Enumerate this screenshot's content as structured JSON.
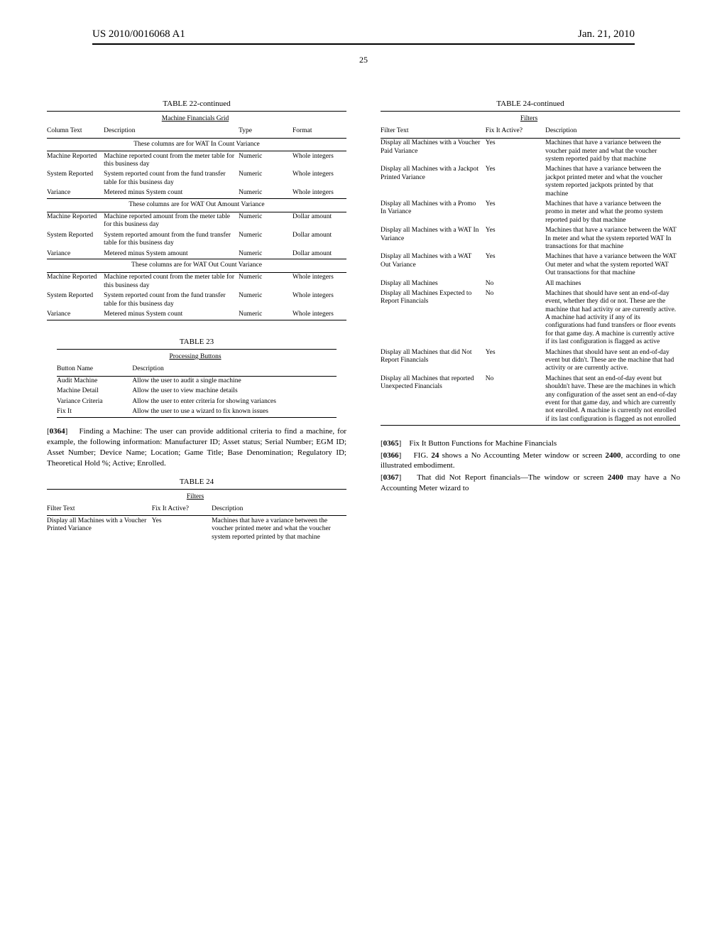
{
  "header": {
    "pubnum": "US 2010/0016068 A1",
    "date": "Jan. 21, 2010",
    "pagenum": "25"
  },
  "table22": {
    "title": "TABLE 22-continued",
    "subtitle": "Machine Financials Grid",
    "headers": [
      "Column Text",
      "Description",
      "Type",
      "Format"
    ],
    "section1": "These columns are for WAT In Count Variance",
    "rows1": [
      [
        "Machine Reported",
        "Machine reported count from the meter table for this business day",
        "Numeric",
        "Whole integers"
      ],
      [
        "System Reported",
        "System reported count from the fund transfer table for this business day",
        "Numeric",
        "Whole integers"
      ],
      [
        "Variance",
        "Metered minus System count",
        "Numeric",
        "Whole integers"
      ]
    ],
    "section2": "These columns are for WAT Out Amount Variance",
    "rows2": [
      [
        "Machine Reported",
        "Machine reported amount from the meter table for this business day",
        "Numeric",
        "Dollar amount"
      ],
      [
        "System Reported",
        "System reported amount from the fund transfer table for this business day",
        "Numeric",
        "Dollar amount"
      ],
      [
        "Variance",
        "Metered minus System amount",
        "Numeric",
        "Dollar amount"
      ]
    ],
    "section3": "These columns are for WAT Out Count Variance",
    "rows3": [
      [
        "Machine Reported",
        "Machine reported count from the meter table for this business day",
        "Numeric",
        "Whole integers"
      ],
      [
        "System Reported",
        "System reported count from the fund transfer table for this business day",
        "Numeric",
        "Whole integers"
      ],
      [
        "Variance",
        "Metered minus System count",
        "Numeric",
        "Whole integers"
      ]
    ]
  },
  "table23": {
    "title": "TABLE 23",
    "subtitle": "Processing Buttons",
    "headers": [
      "Button Name",
      "Description"
    ],
    "rows": [
      [
        "Audit Machine",
        "Allow the user to audit a single machine"
      ],
      [
        "Machine Detail",
        "Allow the user to view machine details"
      ],
      [
        "Variance Criteria",
        "Allow the user to enter criteria for showing variances"
      ],
      [
        "Fix It",
        "Allow the user to use a wizard to fix known issues"
      ]
    ]
  },
  "para0364": {
    "num": "0364",
    "text": "Finding a Machine: The user can provide additional criteria to find a machine, for example, the following information: Manufacturer ID; Asset status; Serial Number; EGM ID; Asset Number; Device Name; Location; Game Title; Base Denomination; Regulatory ID; Theoretical Hold %; Active; Enrolled."
  },
  "table24": {
    "title": "TABLE 24",
    "title_cont": "TABLE 24-continued",
    "subtitle": "Filters",
    "headers": [
      "Filter Text",
      "Fix It Active?",
      "Description"
    ],
    "rows_left": [
      [
        "Display all Machines with a Voucher Printed Variance",
        "Yes",
        "Machines that have a variance between the voucher printed meter and what the voucher system reported printed by that machine"
      ]
    ],
    "rows_right": [
      [
        "Display all Machines with a Voucher Paid Variance",
        "Yes",
        "Machines that have a variance between the voucher paid meter and what the voucher system reported paid by that machine"
      ],
      [
        "Display all Machines with a Jackpot Printed Variance",
        "Yes",
        "Machines that have a variance between the jackpot printed meter and what the voucher system reported jackpots printed by that machine"
      ],
      [
        "Display all Machines with a Promo In Variance",
        "Yes",
        "Machines that have a variance between the promo in meter and what the promo system reported paid by that machine"
      ],
      [
        "Display all Machines with a WAT In Variance",
        "Yes",
        "Machines that have a variance between the WAT In meter and what the system reported WAT In transactions for that machine"
      ],
      [
        "Display all Machines with a WAT Out Variance",
        "Yes",
        "Machines that have a variance between the WAT Out meter and what the system reported WAT Out transactions for that machine"
      ],
      [
        "Display all Machines",
        "No",
        "All machines"
      ],
      [
        "Display all Machines Expected to Report Financials",
        "No",
        "Machines that should have sent an end-of-day event, whether they did or not. These are the machine that had activity or are currently active. A machine had activity if any of its configurations had fund transfers or floor events for that game day. A machine is currently active if its last configuration is flagged as active"
      ],
      [
        "Display all Machines that did Not Report Financials",
        "Yes",
        "Machines that should have sent an end-of-day event but didn't. These are the machine that had activity or are currently active."
      ],
      [
        "Display all Machines that reported Unexpected Financials",
        "No",
        "Machines that sent an end-of-day event but shouldn't have. These are the machines in which any configuration of the asset sent an end-of-day event for that game day, and which are currently not enrolled. A machine is currently not enrolled if its last configuration is flagged as not enrolled"
      ]
    ]
  },
  "para0365": {
    "num": "0365",
    "text": "Fix It Button Functions for Machine Financials"
  },
  "para0366": {
    "num": "0366",
    "text": "FIG. 24 shows a No Accounting Meter window or screen 2400, according to one illustrated embodiment."
  },
  "para0367": {
    "num": "0367",
    "text": "That did Not Report financials—The window or screen 2400 may have a No Accounting Meter wizard to"
  }
}
